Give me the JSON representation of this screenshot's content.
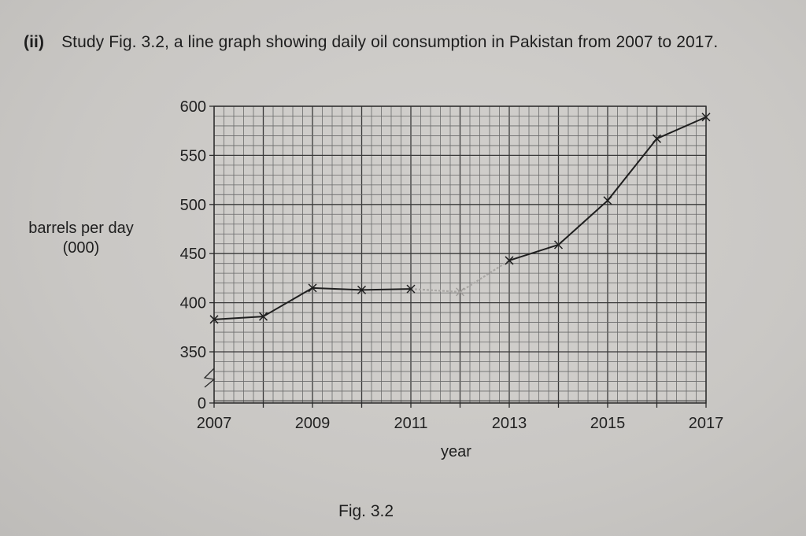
{
  "question": {
    "number": "(ii)",
    "text": "Study Fig. 3.2, a line graph showing daily oil consumption in Pakistan from 2007 to 2017."
  },
  "figure": {
    "caption": "Fig. 3.2",
    "ylabel_line1": "barrels per day",
    "ylabel_line2": "(000)",
    "xlabel": "year"
  },
  "chart_data": {
    "type": "line",
    "title": "Daily oil consumption in Pakistan, 2007–2017",
    "xlabel": "year",
    "ylabel": "barrels per day (000)",
    "x": [
      2007,
      2008,
      2009,
      2010,
      2011,
      2012,
      2013,
      2014,
      2015,
      2016,
      2017
    ],
    "series": [
      {
        "name": "daily oil consumption",
        "values": [
          383,
          386,
          415,
          413,
          414,
          411,
          443,
          459,
          504,
          567,
          589
        ],
        "marker": "x",
        "color": "#1f1f1f",
        "faint_points": [
          2012
        ]
      }
    ],
    "x_tick_labels": [
      "2007",
      "2009",
      "2011",
      "2013",
      "2015",
      "2017"
    ],
    "y_tick_labels": [
      "0",
      "350",
      "400",
      "450",
      "500",
      "550",
      "600"
    ],
    "ylim": [
      350,
      600
    ],
    "y_axis_break": "between 0 and 350",
    "grid": true,
    "grid_minor_x": 0.2,
    "grid_minor_y": 10
  }
}
